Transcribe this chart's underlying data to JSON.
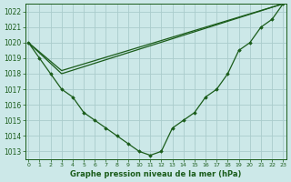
{
  "title": "Graphe pression niveau de la mer (hPa)",
  "bg_color": "#cce8e8",
  "grid_color": "#aacccc",
  "line_color": "#1a5c1a",
  "marker_color": "#1a5c1a",
  "ylim": [
    1012.5,
    1022.5
  ],
  "yticks": [
    1013,
    1014,
    1015,
    1016,
    1017,
    1018,
    1019,
    1020,
    1021,
    1022
  ],
  "xlim": [
    -0.3,
    23.3
  ],
  "xticks": [
    0,
    1,
    2,
    3,
    4,
    5,
    6,
    7,
    8,
    9,
    10,
    11,
    12,
    13,
    14,
    15,
    16,
    17,
    18,
    19,
    20,
    21,
    22,
    23
  ],
  "series1_x": [
    0,
    1,
    2,
    3,
    4,
    5,
    6,
    7,
    8,
    9,
    10,
    11,
    12,
    13,
    14,
    15,
    16,
    17,
    18,
    19,
    20,
    21,
    22,
    23
  ],
  "series1_y": [
    1020,
    1019,
    1018,
    1017,
    1016.5,
    1015.5,
    1015,
    1014.5,
    1014,
    1013.5,
    1013,
    1012.75,
    1013,
    1014.5,
    1015,
    1015.5,
    1016.5,
    1017,
    1018,
    1019.5,
    1020,
    1021,
    1021.5,
    1022.5
  ],
  "series2_x": [
    0,
    3,
    23
  ],
  "series2_y": [
    1020,
    1018,
    1022.5
  ],
  "series3_x": [
    0,
    3,
    23
  ],
  "series3_y": [
    1020,
    1018.2,
    1022.5
  ]
}
